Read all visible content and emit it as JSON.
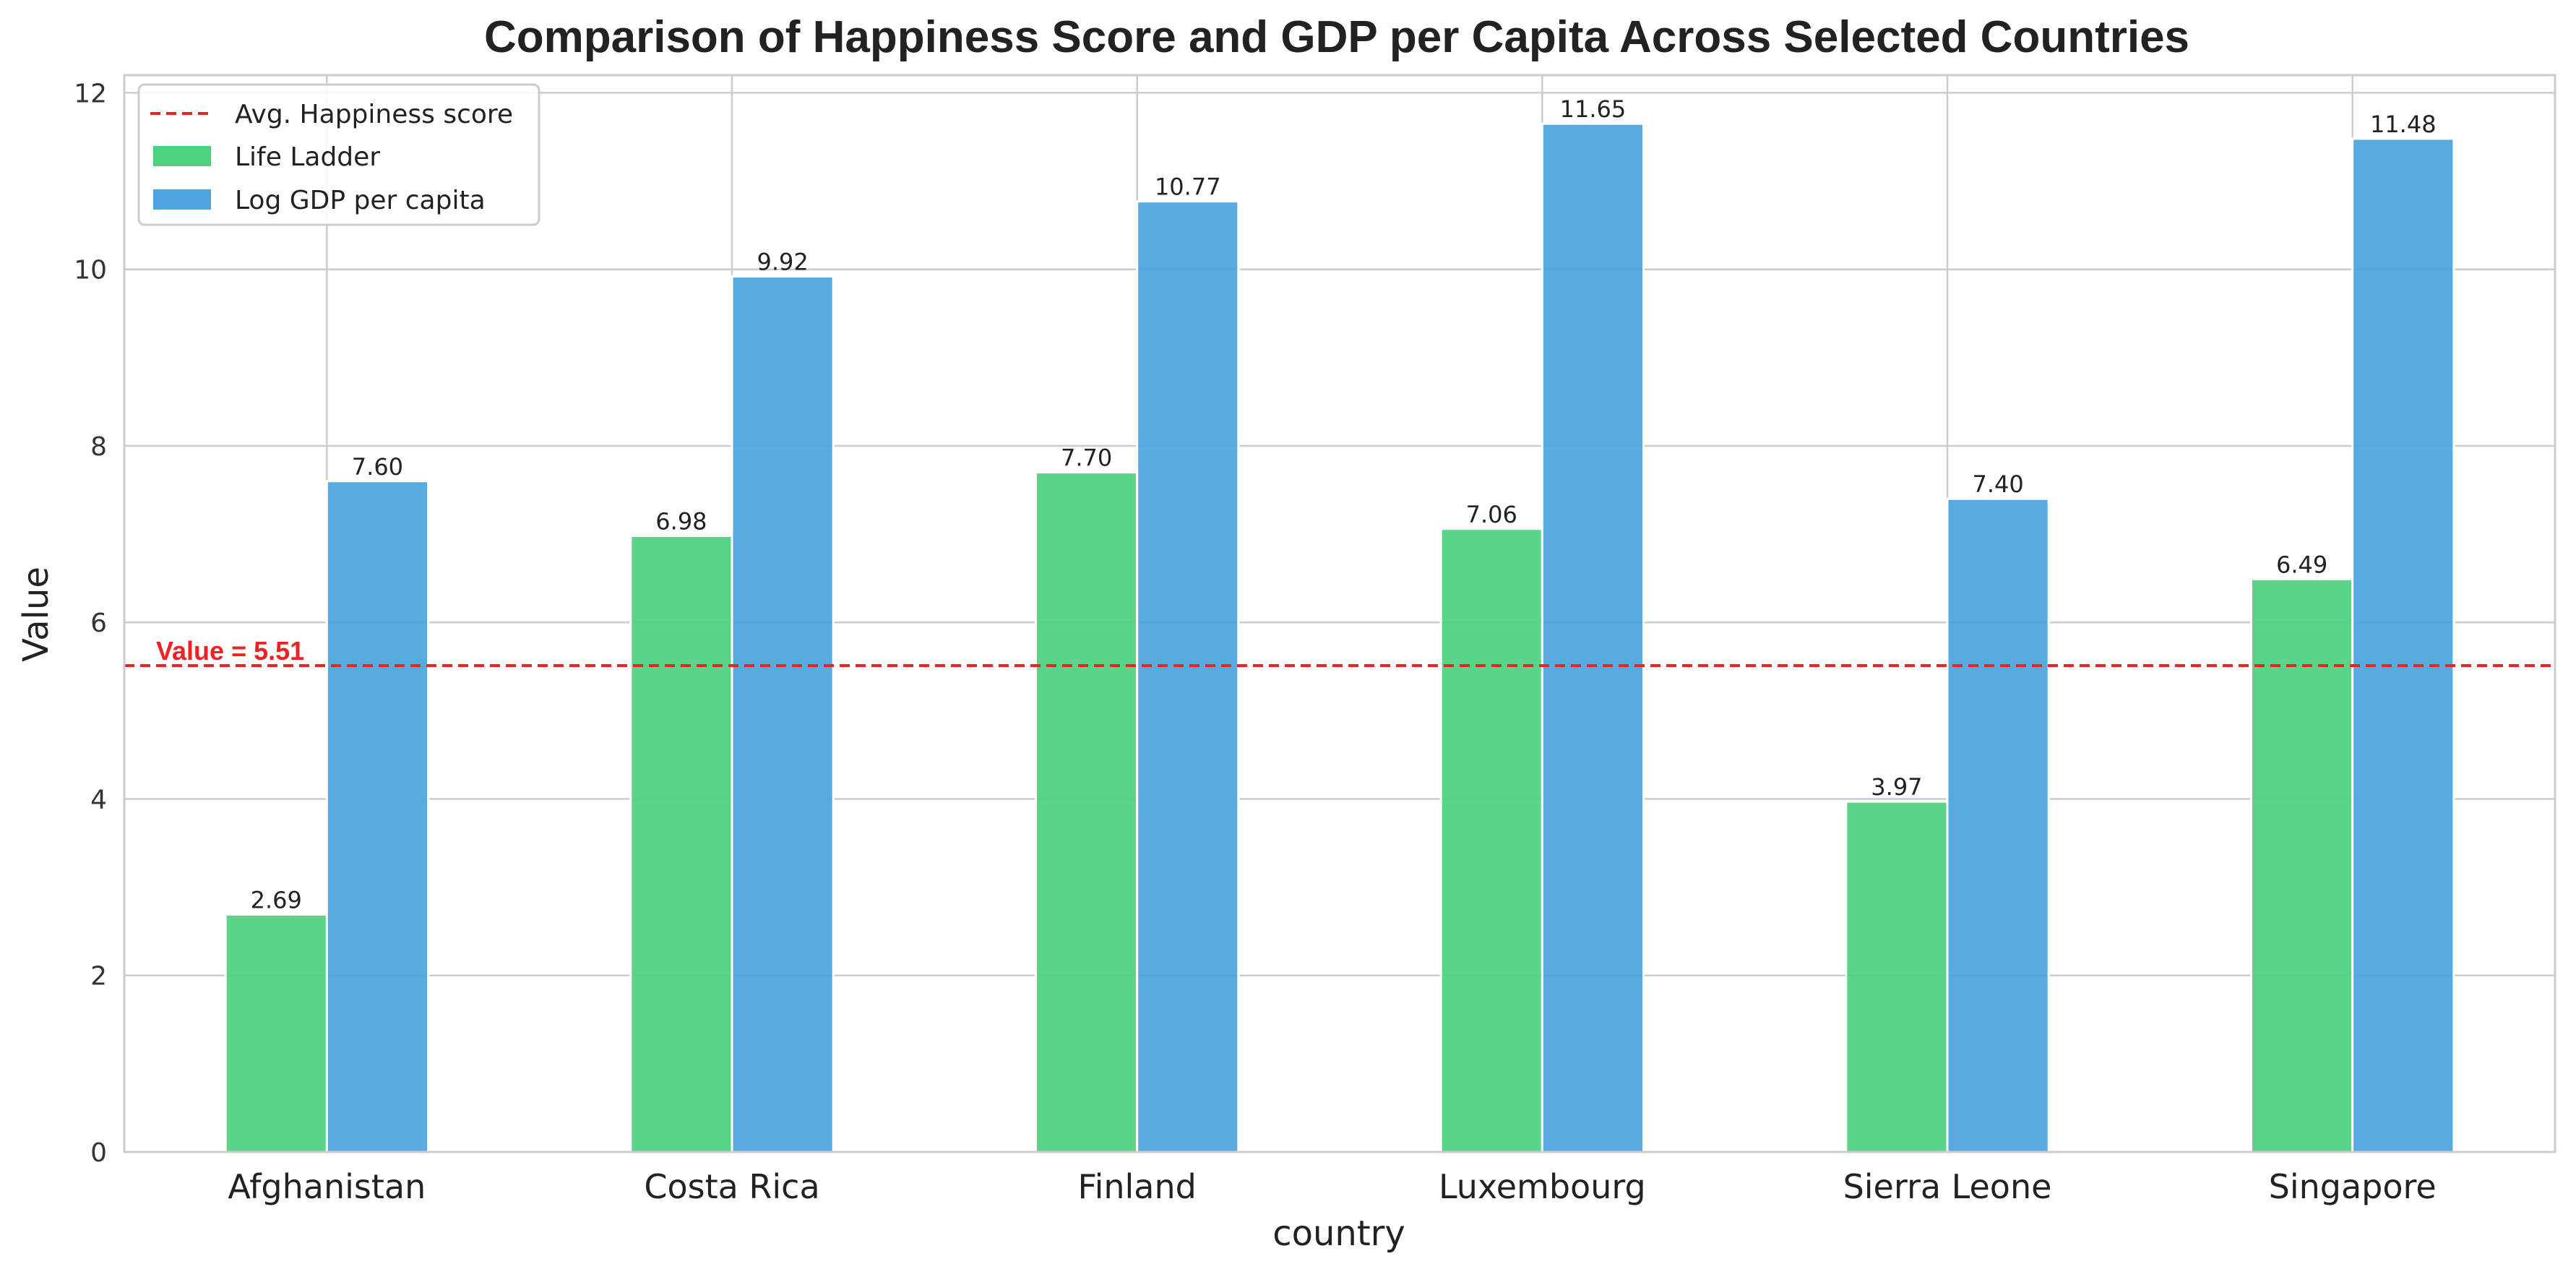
{
  "colors": {
    "life_ladder": "#4cd17f",
    "log_gdp": "#4ea4e0",
    "reference_line": "#ee2222",
    "grid": "#cccccc",
    "frame": "#cccccc"
  },
  "chart_data": {
    "type": "bar",
    "title": "Comparison of Happiness Score and GDP per Capita Across Selected Countries",
    "xlabel": "country",
    "ylabel": "Value",
    "ylim": [
      0,
      12.2
    ],
    "yticks": [
      0,
      2,
      4,
      6,
      8,
      10,
      12
    ],
    "grid": true,
    "legend_position": "top-left",
    "categories": [
      "Afghanistan",
      "Costa Rica",
      "Finland",
      "Luxembourg",
      "Sierra Leone",
      "Singapore"
    ],
    "series": [
      {
        "name": "Life Ladder",
        "values": [
          2.69,
          6.98,
          7.7,
          7.06,
          3.97,
          6.49
        ],
        "labels": [
          "2.69",
          "6.98",
          "7.70",
          "7.06",
          "3.97",
          "6.49"
        ]
      },
      {
        "name": "Log GDP per capita",
        "values": [
          7.6,
          9.92,
          10.77,
          11.65,
          7.4,
          11.48
        ],
        "labels": [
          "7.60",
          "9.92",
          "10.77",
          "11.65",
          "7.40",
          "11.48"
        ]
      }
    ],
    "reference_line": {
      "name": "Avg. Happiness score",
      "value": 5.51,
      "label": "Value = 5.51",
      "style": "dashed"
    }
  }
}
